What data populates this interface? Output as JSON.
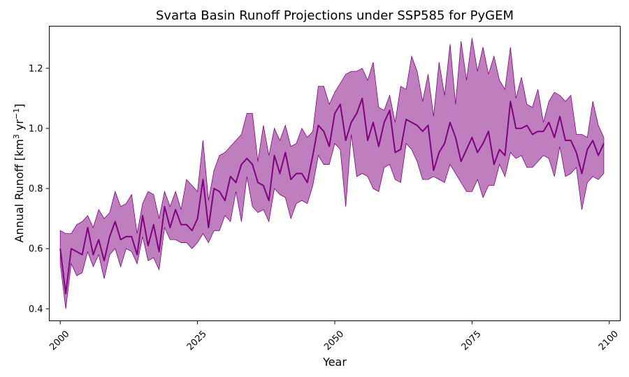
{
  "chart_data": {
    "type": "area",
    "title": "Svarta Basin Runoff Projections under SSP585 for PyGEM",
    "xlabel": "Year",
    "ylabel_main": "Annual Runoff [km",
    "ylabel_sup1": "3",
    "ylabel_mid": " yr",
    "ylabel_sup2": "−1",
    "ylabel_end": "]",
    "xlim": [
      1998,
      2102
    ],
    "ylim": [
      0.36,
      1.34
    ],
    "xticks": [
      2000,
      2025,
      2050,
      2075,
      2100
    ],
    "yticks": [
      0.4,
      0.6,
      0.8,
      1.0,
      1.2
    ],
    "xtick_labels": [
      "2000",
      "2025",
      "2050",
      "2075",
      "2100"
    ],
    "ytick_labels": [
      "0.4",
      "0.6",
      "0.8",
      "1.0",
      "1.2"
    ],
    "colors": {
      "line": "#800080",
      "band": "#800080",
      "band_opacity": 0.5
    },
    "x": [
      2000,
      2001,
      2002,
      2003,
      2004,
      2005,
      2006,
      2007,
      2008,
      2009,
      2010,
      2011,
      2012,
      2013,
      2014,
      2015,
      2016,
      2017,
      2018,
      2019,
      2020,
      2021,
      2022,
      2023,
      2024,
      2025,
      2026,
      2027,
      2028,
      2029,
      2030,
      2031,
      2032,
      2033,
      2034,
      2035,
      2036,
      2037,
      2038,
      2039,
      2040,
      2041,
      2042,
      2043,
      2044,
      2045,
      2046,
      2047,
      2048,
      2049,
      2050,
      2051,
      2052,
      2053,
      2054,
      2055,
      2056,
      2057,
      2058,
      2059,
      2060,
      2061,
      2062,
      2063,
      2064,
      2065,
      2066,
      2067,
      2068,
      2069,
      2070,
      2071,
      2072,
      2073,
      2074,
      2075,
      2076,
      2077,
      2078,
      2079,
      2080,
      2081,
      2082,
      2083,
      2084,
      2085,
      2086,
      2087,
      2088,
      2089,
      2090,
      2091,
      2092,
      2093,
      2094,
      2095,
      2096,
      2097,
      2098,
      2099
    ],
    "series": [
      {
        "values": [
          0.6,
          0.45,
          0.6,
          0.59,
          0.58,
          0.67,
          0.58,
          0.63,
          0.56,
          0.64,
          0.69,
          0.63,
          0.64,
          0.64,
          0.58,
          0.71,
          0.61,
          0.68,
          0.59,
          0.74,
          0.67,
          0.73,
          0.68,
          0.68,
          0.66,
          0.7,
          0.83,
          0.67,
          0.8,
          0.79,
          0.76,
          0.84,
          0.82,
          0.88,
          0.9,
          0.88,
          0.82,
          0.81,
          0.76,
          0.91,
          0.85,
          0.92,
          0.83,
          0.85,
          0.85,
          0.82,
          0.91,
          1.01,
          0.99,
          0.94,
          1.05,
          1.08,
          0.96,
          1.02,
          1.05,
          1.1,
          0.96,
          1.02,
          0.94,
          1.02,
          1.06,
          0.92,
          0.93,
          1.03,
          1.02,
          1.01,
          0.99,
          1.01,
          0.86,
          0.92,
          0.95,
          1.02,
          0.97,
          0.89,
          0.93,
          0.97,
          0.92,
          0.95,
          0.99,
          0.88,
          0.93,
          0.91,
          1.09,
          1.0,
          1.0,
          1.01,
          0.98,
          0.99,
          0.99,
          1.02,
          0.97,
          1.04,
          0.96,
          0.96,
          0.92,
          0.85,
          0.93,
          0.96,
          0.91,
          0.95
        ]
      }
    ],
    "band_upper": [
      0.66,
      0.65,
      0.65,
      0.68,
      0.69,
      0.71,
      0.67,
      0.73,
      0.7,
      0.72,
      0.79,
      0.74,
      0.75,
      0.78,
      0.65,
      0.75,
      0.79,
      0.78,
      0.7,
      0.79,
      0.74,
      0.79,
      0.73,
      0.83,
      0.81,
      0.79,
      0.96,
      0.76,
      0.86,
      0.91,
      0.92,
      0.94,
      0.96,
      0.98,
      1.05,
      1.05,
      0.89,
      1.01,
      0.91,
      1.0,
      0.96,
      1.01,
      0.94,
      0.95,
      1.0,
      0.97,
      0.99,
      1.14,
      1.14,
      1.08,
      1.12,
      1.15,
      1.18,
      1.19,
      1.19,
      1.2,
      1.16,
      1.22,
      1.07,
      1.06,
      1.11,
      1.02,
      1.14,
      1.13,
      1.24,
      1.19,
      1.09,
      1.18,
      1.04,
      1.22,
      1.11,
      1.28,
      1.08,
      1.29,
      1.16,
      1.3,
      1.19,
      1.27,
      1.18,
      1.24,
      1.16,
      1.13,
      1.27,
      1.1,
      1.17,
      1.08,
      1.07,
      1.13,
      1.02,
      1.09,
      1.12,
      1.11,
      1.09,
      1.11,
      0.98,
      0.98,
      0.97,
      1.09,
      1.01,
      0.97
    ],
    "band_lower": [
      0.55,
      0.4,
      0.55,
      0.51,
      0.52,
      0.59,
      0.54,
      0.58,
      0.5,
      0.58,
      0.6,
      0.54,
      0.6,
      0.59,
      0.55,
      0.64,
      0.56,
      0.57,
      0.53,
      0.67,
      0.63,
      0.63,
      0.62,
      0.62,
      0.6,
      0.62,
      0.65,
      0.62,
      0.66,
      0.66,
      0.71,
      0.69,
      0.79,
      0.69,
      0.84,
      0.74,
      0.72,
      0.73,
      0.69,
      0.8,
      0.78,
      0.77,
      0.7,
      0.75,
      0.76,
      0.75,
      0.81,
      0.91,
      0.88,
      0.88,
      0.95,
      0.93,
      0.74,
      0.98,
      0.84,
      0.85,
      0.84,
      0.8,
      0.79,
      0.87,
      0.88,
      0.83,
      0.82,
      0.95,
      0.93,
      0.89,
      0.83,
      0.83,
      0.84,
      0.83,
      0.82,
      0.88,
      0.85,
      0.82,
      0.79,
      0.79,
      0.83,
      0.77,
      0.81,
      0.81,
      0.88,
      0.84,
      0.92,
      0.9,
      0.91,
      0.87,
      0.87,
      0.89,
      0.91,
      0.9,
      0.84,
      0.94,
      0.84,
      0.85,
      0.87,
      0.73,
      0.82,
      0.84,
      0.83,
      0.85
    ]
  }
}
